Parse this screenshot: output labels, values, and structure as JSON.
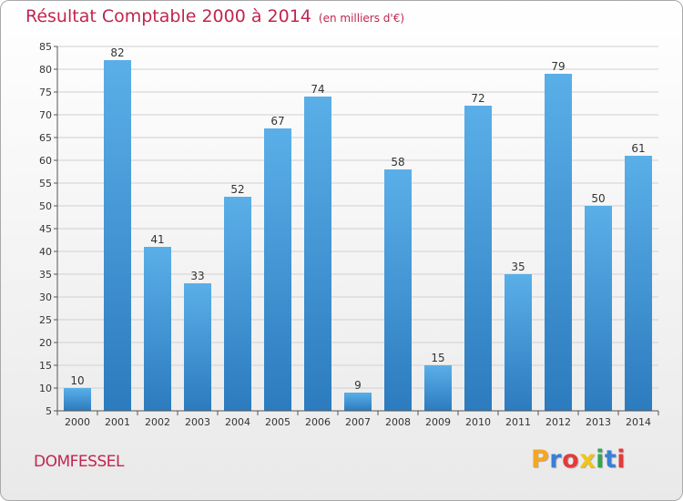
{
  "title": "Résultat Comptable 2000 à 2014",
  "unit": "(en milliers d'€)",
  "commune": "DOMFESSEL",
  "logo": {
    "text": "Proxiti",
    "letter_colors": [
      "#f5a623",
      "#3b7fd4",
      "#e23b3b",
      "#f0c419",
      "#2fa84f",
      "#3b7fd4",
      "#e23b3b"
    ]
  },
  "colors": {
    "bar_top": "#5aafe8",
    "bar_bottom": "#2c7bbe",
    "title": "#c0264f",
    "grid": "#d0d0d0"
  },
  "chart_data": {
    "type": "bar",
    "categories": [
      "2000",
      "2001",
      "2002",
      "2003",
      "2004",
      "2005",
      "2006",
      "2007",
      "2008",
      "2009",
      "2010",
      "2011",
      "2012",
      "2013",
      "2014"
    ],
    "values": [
      10,
      82,
      41,
      33,
      52,
      67,
      74,
      9,
      58,
      15,
      72,
      35,
      79,
      50,
      61
    ],
    "ylim": [
      5,
      85
    ],
    "yticks": [
      5,
      10,
      15,
      20,
      25,
      30,
      35,
      40,
      45,
      50,
      55,
      60,
      65,
      70,
      75,
      80,
      85
    ],
    "grid": true,
    "data_labels": true
  }
}
